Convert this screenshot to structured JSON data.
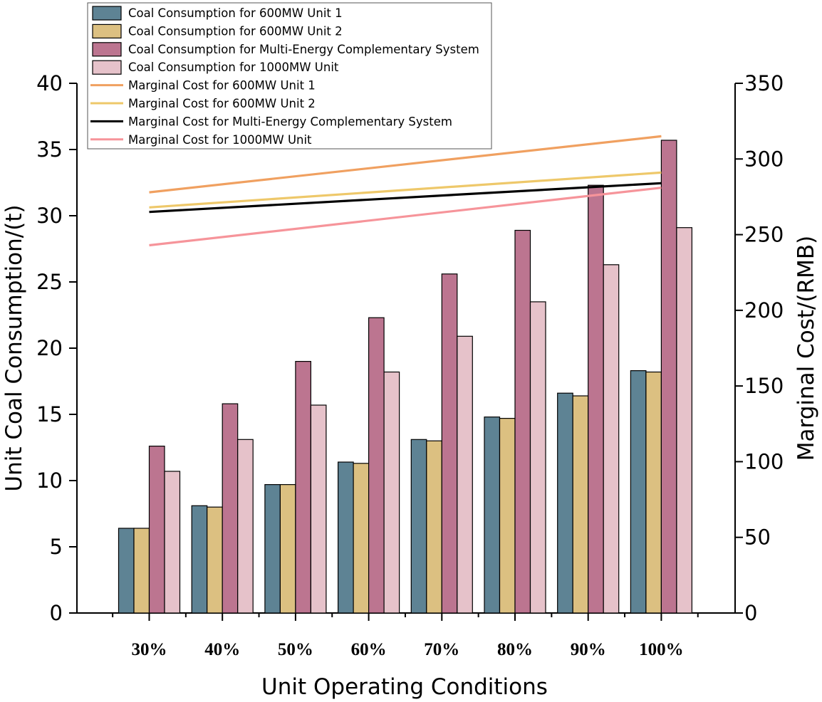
{
  "chart_data": {
    "type": "bar+line",
    "title": "",
    "xlabel": "Unit Operating Conditions",
    "ylabel_left": "Unit Coal Consumption/(t)",
    "ylabel_right": "Marginal Cost/(RMB)",
    "categories": [
      "30%",
      "40%",
      "50%",
      "60%",
      "70%",
      "80%",
      "90%",
      "100%"
    ],
    "ylim_left": [
      0,
      40
    ],
    "yticks_left": [
      "0",
      "5",
      "10",
      "15",
      "20",
      "25",
      "30",
      "35",
      "40"
    ],
    "ylim_right": [
      0,
      350
    ],
    "yticks_right": [
      "0",
      "50",
      "100",
      "150",
      "200",
      "250",
      "300",
      "350"
    ],
    "bar_series": [
      {
        "name": "Coal Consumption for 600MW Unit 1",
        "color": "#5e8394",
        "values": [
          6.4,
          8.1,
          9.7,
          11.4,
          13.1,
          14.8,
          16.6,
          18.3
        ]
      },
      {
        "name": "Coal Consumption for 600MW Unit 2",
        "color": "#dcc081",
        "values": [
          6.4,
          8.0,
          9.7,
          11.3,
          13.0,
          14.7,
          16.4,
          18.2
        ]
      },
      {
        "name": "Coal Consumption for Multi-Energy Complementary System",
        "color": "#bc7590",
        "values": [
          12.6,
          15.8,
          19.0,
          22.3,
          25.6,
          28.9,
          32.3,
          35.7
        ]
      },
      {
        "name": "Coal Consumption for 1000MW Unit",
        "color": "#e6c2ca",
        "values": [
          10.7,
          13.1,
          15.7,
          18.2,
          20.9,
          23.5,
          26.3,
          29.1
        ]
      }
    ],
    "line_series": [
      {
        "name": "Marginal Cost for 600MW Unit 1",
        "color": "#f0a060",
        "values": [
          278,
          315
        ]
      },
      {
        "name": "Marginal Cost for 600MW Unit 2",
        "color": "#eec86a",
        "values": [
          268,
          291
        ]
      },
      {
        "name": "Marginal Cost for Multi-Energy Complementary System",
        "color": "#000000",
        "values": [
          265,
          284
        ]
      },
      {
        "name": "Marginal Cost for 1000MW Unit",
        "color": "#f6949a",
        "values": [
          243,
          281
        ]
      }
    ],
    "line_x_range": [
      "30%",
      "100%"
    ],
    "legend_position": "top-left"
  }
}
